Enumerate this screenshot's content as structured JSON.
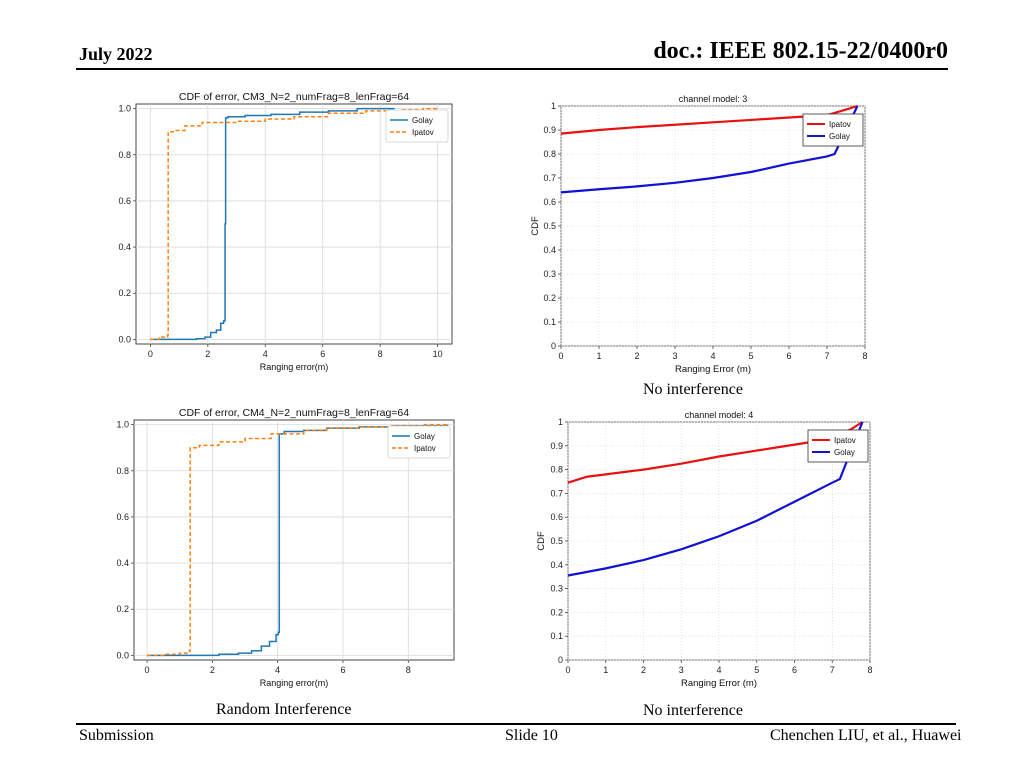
{
  "header": {
    "date": "July 2022",
    "doc": "doc.: IEEE 802.15-22/0400r0"
  },
  "footer": {
    "left": "Submission",
    "center": "Slide 10",
    "right": "Chenchen LIU, et al., Huawei"
  },
  "captions": {
    "top_right": "No interference",
    "bottom_left": "Random Interference",
    "bottom_right": "No interference"
  },
  "colors": {
    "golay_py": "#1f77b4",
    "ipatov_py": "#ff7f0e",
    "ipatov_ml": "#e81010",
    "golay_ml": "#1010d8",
    "grid": "#d9d9d9"
  },
  "chart_data": [
    {
      "type": "line",
      "title": "CDF of error, CM3_N=2_numFrag=8_lenFrag=64",
      "xlabel": "Ranging error(m)",
      "ylabel": "",
      "xlim": [
        -0.5,
        10.5
      ],
      "ylim": [
        -0.02,
        1.02
      ],
      "xticks": [
        0,
        2,
        4,
        6,
        8,
        10
      ],
      "yticks": [
        0.0,
        0.2,
        0.4,
        0.6,
        0.8,
        1.0
      ],
      "ytick_labels": [
        "0.0",
        "0.2",
        "0.4",
        "0.6",
        "0.8",
        "1.0"
      ],
      "grid": true,
      "legend": "top-right",
      "series": [
        {
          "name": "Golay",
          "dash": false,
          "x": [
            0,
            1,
            1.6,
            1.9,
            2.1,
            2.3,
            2.45,
            2.55,
            2.6,
            2.62,
            2.7,
            3.3,
            4.2,
            5.2,
            6.2,
            7.2,
            8.5
          ],
          "y": [
            0.0,
            0.0,
            0.003,
            0.01,
            0.03,
            0.04,
            0.07,
            0.08,
            0.5,
            0.96,
            0.965,
            0.97,
            0.975,
            0.985,
            0.99,
            1.0,
            1.0
          ]
        },
        {
          "name": "Ipatov",
          "dash": true,
          "x": [
            0,
            0.3,
            0.6,
            0.62,
            0.8,
            1.2,
            1.8,
            3.0,
            4.0,
            5.0,
            6.2,
            7.5,
            8.7,
            9.5,
            10.0
          ],
          "y": [
            0.0,
            0.01,
            0.02,
            0.9,
            0.905,
            0.925,
            0.94,
            0.945,
            0.955,
            0.965,
            0.98,
            0.99,
            0.995,
            1.0,
            1.0
          ]
        }
      ]
    },
    {
      "type": "line",
      "title": "channel model: 3",
      "xlabel": "Ranging Error (m)",
      "ylabel": "CDF",
      "xlim": [
        0,
        8
      ],
      "ylim": [
        0,
        1
      ],
      "xticks": [
        0,
        1,
        2,
        3,
        4,
        5,
        6,
        7,
        8
      ],
      "yticks": [
        0,
        0.1,
        0.2,
        0.3,
        0.4,
        0.5,
        0.6,
        0.7,
        0.8,
        0.9,
        1
      ],
      "ytick_labels": [
        "0",
        "0.1",
        "0.2",
        "0.3",
        "0.4",
        "0.5",
        "0.6",
        "0.7",
        "0.8",
        "0.9",
        "1"
      ],
      "grid": true,
      "legend": "top-right",
      "series": [
        {
          "name": "Ipatov",
          "dash": false,
          "x": [
            0,
            1,
            2,
            3,
            4,
            5,
            6,
            7,
            7.5,
            7.8
          ],
          "y": [
            0.885,
            0.9,
            0.912,
            0.922,
            0.932,
            0.942,
            0.952,
            0.962,
            0.985,
            1.0
          ]
        },
        {
          "name": "Golay",
          "dash": false,
          "x": [
            0,
            1,
            2,
            3,
            4,
            5,
            6,
            7,
            7.2,
            7.5,
            7.8
          ],
          "y": [
            0.64,
            0.653,
            0.665,
            0.68,
            0.7,
            0.725,
            0.76,
            0.79,
            0.8,
            0.9,
            1.0
          ]
        }
      ]
    },
    {
      "type": "line",
      "title": "CDF of error, CM4_N=2_numFrag=8_lenFrag=64",
      "xlabel": "Ranging error(m)",
      "ylabel": "",
      "xlim": [
        -0.4,
        9.4
      ],
      "ylim": [
        -0.02,
        1.02
      ],
      "xticks": [
        0,
        2,
        4,
        6,
        8
      ],
      "yticks": [
        0.0,
        0.2,
        0.4,
        0.6,
        0.8,
        1.0
      ],
      "ytick_labels": [
        "0.0",
        "0.2",
        "0.4",
        "0.6",
        "0.8",
        "1.0"
      ],
      "grid": true,
      "legend": "top-right",
      "series": [
        {
          "name": "Golay",
          "dash": false,
          "x": [
            0,
            1.5,
            2.2,
            2.8,
            3.2,
            3.5,
            3.75,
            3.95,
            4.02,
            4.05,
            4.2,
            4.8,
            5.5,
            6.5,
            7.5,
            9.2
          ],
          "y": [
            0.0,
            0.0,
            0.005,
            0.01,
            0.02,
            0.04,
            0.06,
            0.09,
            0.1,
            0.96,
            0.97,
            0.975,
            0.985,
            0.99,
            0.995,
            1.0
          ]
        },
        {
          "name": "Ipatov",
          "dash": true,
          "x": [
            0,
            0.5,
            1.0,
            1.3,
            1.32,
            1.6,
            2.2,
            3.0,
            3.8,
            4.8,
            5.5,
            6.5,
            7.5,
            8.5,
            9.2
          ],
          "y": [
            0.0,
            0.005,
            0.01,
            0.02,
            0.9,
            0.91,
            0.925,
            0.94,
            0.96,
            0.975,
            0.985,
            0.99,
            0.995,
            1.0,
            1.0
          ]
        }
      ]
    },
    {
      "type": "line",
      "title": "channel model: 4",
      "xlabel": "Ranging Error (m)",
      "ylabel": "CDF",
      "xlim": [
        0,
        8
      ],
      "ylim": [
        0,
        1
      ],
      "xticks": [
        0,
        1,
        2,
        3,
        4,
        5,
        6,
        7,
        8
      ],
      "yticks": [
        0,
        0.1,
        0.2,
        0.3,
        0.4,
        0.5,
        0.6,
        0.7,
        0.8,
        0.9,
        1
      ],
      "ytick_labels": [
        "0",
        "0.1",
        "0.2",
        "0.3",
        "0.4",
        "0.5",
        "0.6",
        "0.7",
        "0.8",
        "0.9",
        "1"
      ],
      "grid": true,
      "legend": "top-right",
      "series": [
        {
          "name": "Ipatov",
          "dash": false,
          "x": [
            0,
            0.5,
            1,
            2,
            3,
            4,
            5,
            6,
            7,
            7.5,
            7.8
          ],
          "y": [
            0.745,
            0.77,
            0.78,
            0.8,
            0.825,
            0.855,
            0.88,
            0.905,
            0.93,
            0.97,
            1.0
          ]
        },
        {
          "name": "Golay",
          "dash": false,
          "x": [
            0,
            1,
            2,
            3,
            4,
            5,
            6,
            7,
            7.2,
            7.5,
            7.8
          ],
          "y": [
            0.355,
            0.385,
            0.42,
            0.465,
            0.52,
            0.585,
            0.665,
            0.745,
            0.76,
            0.88,
            1.0
          ]
        }
      ]
    }
  ]
}
